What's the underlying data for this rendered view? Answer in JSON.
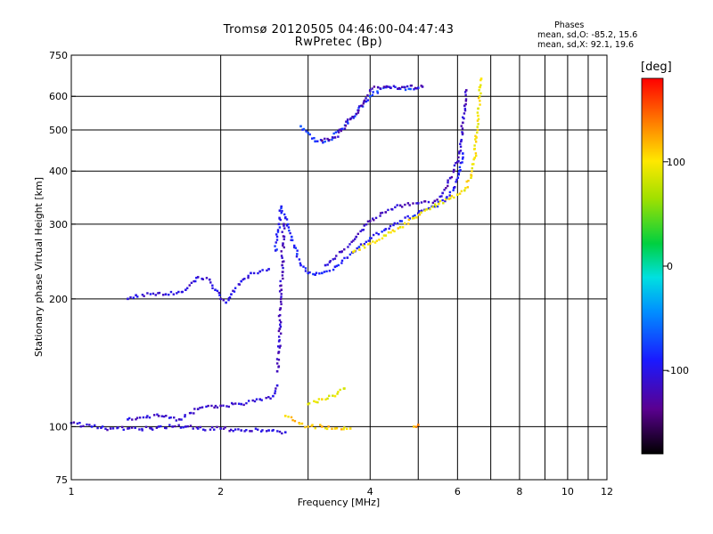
{
  "title": {
    "line1": "Tromsø 20120505 04:46:00-04:47:43",
    "line2": "RwPretec (Bp)"
  },
  "stats": {
    "heading": "Phases",
    "line0": "mean, sd,O: -85.2, 15.6",
    "line1": "mean, sd,X:  92.1, 19.6"
  },
  "colorbar": {
    "label": "[deg]",
    "min": -180,
    "max": 180,
    "tick_values": [
      100,
      0,
      -100
    ],
    "tick_labels": [
      "100",
      "0",
      "-100"
    ]
  },
  "chart_data": {
    "type": "scatter",
    "xlabel": "Frequency [MHz]",
    "ylabel": "Stationary phase Virtual Height [km]",
    "xscale": "log",
    "yscale": "log",
    "xlim": [
      1,
      12
    ],
    "ylim": [
      75,
      750
    ],
    "x_ticks": [
      1,
      2,
      4,
      6,
      8,
      10,
      12
    ],
    "x_tick_labels": [
      "1",
      "2",
      "4",
      "6",
      "8",
      "10",
      "12"
    ],
    "x_grid": [
      2,
      3,
      4,
      5,
      6,
      7,
      8,
      9,
      10,
      11
    ],
    "y_ticks": [
      75,
      100,
      200,
      300,
      400,
      500,
      600,
      750
    ],
    "y_tick_labels": [
      "75",
      "100",
      "200",
      "300",
      "400",
      "500",
      "600",
      "750"
    ],
    "y_grid": [
      100,
      200,
      300,
      400,
      500,
      600
    ],
    "grid": true,
    "color_value": "phase [deg]",
    "traces": [
      {
        "phase": -110,
        "points": [
          [
            1.0,
            102
          ],
          [
            1.1,
            100
          ],
          [
            1.2,
            99
          ],
          [
            1.3,
            99
          ],
          [
            1.45,
            99
          ],
          [
            1.5,
            100
          ],
          [
            1.6,
            100
          ],
          [
            1.7,
            100
          ],
          [
            1.8,
            99
          ],
          [
            2.0,
            99
          ],
          [
            2.2,
            98
          ],
          [
            2.5,
            98
          ],
          [
            2.7,
            97
          ]
        ]
      },
      {
        "phase": -110,
        "points": [
          [
            1.3,
            104
          ],
          [
            1.5,
            106
          ],
          [
            1.65,
            104
          ],
          [
            1.8,
            110
          ],
          [
            2.0,
            112
          ],
          [
            2.2,
            113
          ],
          [
            2.4,
            116
          ],
          [
            2.55,
            118
          ],
          [
            2.6,
            125
          ]
        ]
      },
      {
        "phase": -115,
        "points": [
          [
            2.6,
            135
          ],
          [
            2.62,
            150
          ],
          [
            2.63,
            170
          ],
          [
            2.64,
            190
          ],
          [
            2.65,
            210
          ],
          [
            2.66,
            240
          ],
          [
            2.67,
            270
          ],
          [
            2.68,
            300
          ]
        ]
      },
      {
        "phase": -105,
        "points": [
          [
            1.3,
            200
          ],
          [
            1.35,
            204
          ],
          [
            1.55,
            205
          ],
          [
            1.7,
            210
          ],
          [
            1.8,
            225
          ],
          [
            1.9,
            222
          ],
          [
            1.95,
            210
          ],
          [
            2.0,
            200
          ],
          [
            2.05,
            196
          ],
          [
            2.1,
            205
          ],
          [
            2.2,
            220
          ],
          [
            2.3,
            230
          ],
          [
            2.4,
            232
          ],
          [
            2.5,
            235
          ]
        ]
      },
      {
        "phase": -90,
        "points": [
          [
            2.58,
            260
          ],
          [
            2.62,
            300
          ],
          [
            2.65,
            330
          ],
          [
            2.7,
            310
          ],
          [
            2.78,
            280
          ],
          [
            2.85,
            255
          ],
          [
            2.9,
            240
          ],
          [
            3.0,
            230
          ],
          [
            3.1,
            228
          ],
          [
            3.2,
            230
          ],
          [
            3.4,
            238
          ],
          [
            3.6,
            250
          ],
          [
            3.8,
            265
          ],
          [
            4.0,
            278
          ],
          [
            4.3,
            292
          ],
          [
            4.6,
            305
          ],
          [
            5.0,
            318
          ],
          [
            5.4,
            330
          ],
          [
            5.7,
            345
          ],
          [
            5.9,
            365
          ],
          [
            6.05,
            400
          ],
          [
            6.15,
            440
          ]
        ]
      },
      {
        "phase": -115,
        "points": [
          [
            3.25,
            240
          ],
          [
            3.5,
            258
          ],
          [
            3.75,
            280
          ],
          [
            4.0,
            305
          ],
          [
            4.3,
            320
          ],
          [
            4.6,
            332
          ],
          [
            5.0,
            336
          ],
          [
            5.4,
            340
          ],
          [
            5.6,
            355
          ],
          [
            5.8,
            385
          ],
          [
            6.0,
            420
          ],
          [
            6.1,
            470
          ],
          [
            6.15,
            520
          ],
          [
            6.2,
            570
          ],
          [
            6.25,
            620
          ]
        ]
      },
      {
        "phase": -80,
        "points": [
          [
            2.9,
            510
          ],
          [
            3.0,
            492
          ],
          [
            3.1,
            470
          ],
          [
            3.3,
            472
          ],
          [
            3.5,
            502
          ],
          [
            3.75,
            545
          ],
          [
            4.0,
            600
          ],
          [
            4.2,
            625
          ],
          [
            4.6,
            625
          ],
          [
            5.0,
            628
          ]
        ]
      },
      {
        "phase": -120,
        "points": [
          [
            3.2,
            472
          ],
          [
            3.4,
            480
          ],
          [
            3.65,
            530
          ],
          [
            3.85,
            570
          ],
          [
            4.0,
            620
          ],
          [
            4.15,
            630
          ],
          [
            4.4,
            628
          ],
          [
            4.7,
            630
          ],
          [
            5.1,
            632
          ]
        ]
      },
      {
        "phase": 100,
        "points": [
          [
            3.7,
            258
          ],
          [
            4.0,
            270
          ],
          [
            4.3,
            282
          ],
          [
            4.6,
            295
          ],
          [
            4.9,
            310
          ],
          [
            5.2,
            325
          ],
          [
            5.5,
            335
          ],
          [
            5.8,
            345
          ],
          [
            6.0,
            352
          ],
          [
            6.2,
            360
          ],
          [
            6.4,
            390
          ],
          [
            6.5,
            430
          ],
          [
            6.55,
            480
          ],
          [
            6.6,
            540
          ],
          [
            6.65,
            600
          ],
          [
            6.7,
            660
          ]
        ]
      },
      {
        "phase": 95,
        "points": [
          [
            3.0,
            113
          ],
          [
            3.2,
            116
          ],
          [
            3.4,
            118
          ],
          [
            3.55,
            123
          ]
        ]
      },
      {
        "phase": 110,
        "points": [
          [
            2.7,
            106
          ],
          [
            3.0,
            100
          ],
          [
            3.2,
            100
          ],
          [
            3.4,
            99
          ],
          [
            3.65,
            99
          ]
        ]
      },
      {
        "phase": 125,
        "points": [
          [
            4.9,
            100
          ],
          [
            5.0,
            101
          ]
        ]
      }
    ]
  }
}
